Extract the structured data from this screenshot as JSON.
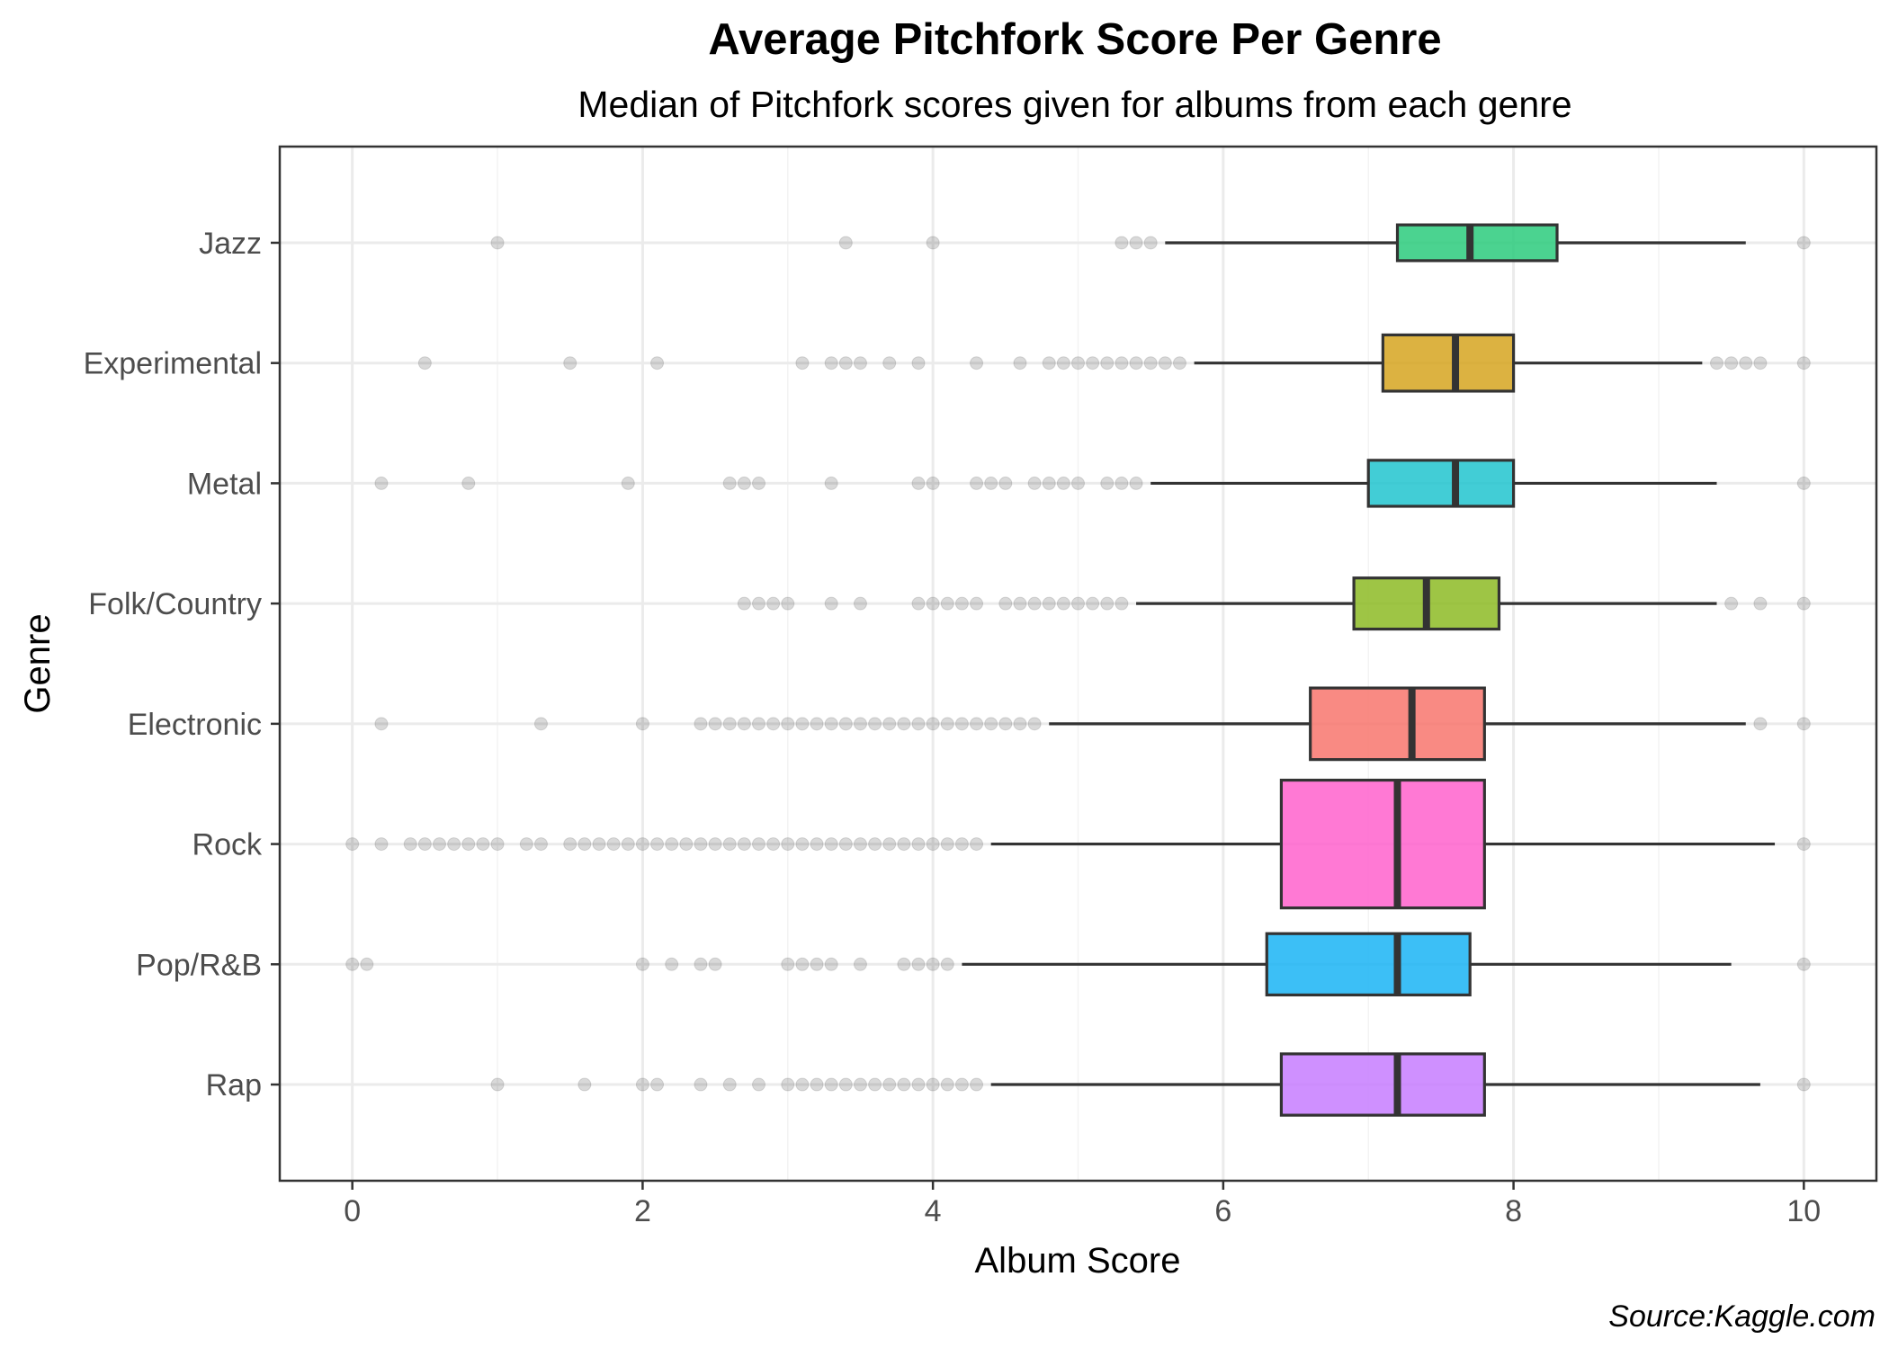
{
  "chart_data": {
    "type": "boxplot",
    "title": "Average Pitchfork Score Per Genre",
    "subtitle": "Median of Pitchfork scores given for albums from each genre",
    "xlabel": "Album Score",
    "ylabel": "Genre",
    "caption": "Source:Kaggle.com",
    "xlim": [
      -0.5,
      10.5
    ],
    "x_ticks": [
      0,
      2,
      4,
      6,
      8,
      10
    ],
    "x_tick_labels": [
      "0",
      "2",
      "4",
      "6",
      "8",
      "10"
    ],
    "grid": true,
    "legend": "none",
    "categories": [
      "Jazz",
      "Experimental",
      "Metal",
      "Folk/Country",
      "Electronic",
      "Rock",
      "Pop/R&B",
      "Rap"
    ],
    "series": [
      {
        "genre": "Jazz",
        "color": "#2BCB7D",
        "width": 0.35,
        "min": 5.6,
        "q1": 7.2,
        "median": 7.7,
        "q3": 8.3,
        "max": 9.6,
        "outliers": [
          1.0,
          3.4,
          4.0,
          5.3,
          5.4,
          5.5,
          10.0
        ]
      },
      {
        "genre": "Experimental",
        "color": "#D6A520",
        "width": 0.55,
        "min": 5.8,
        "q1": 7.1,
        "median": 7.6,
        "q3": 8.0,
        "max": 9.3,
        "outliers": [
          0.5,
          1.5,
          2.1,
          3.1,
          3.3,
          3.4,
          3.5,
          3.7,
          3.9,
          4.3,
          4.6,
          4.8,
          4.9,
          5.0,
          5.1,
          5.2,
          5.3,
          5.4,
          5.5,
          5.6,
          5.7,
          9.4,
          9.5,
          9.6,
          9.7,
          10.0
        ]
      },
      {
        "genre": "Metal",
        "color": "#21C4CF",
        "width": 0.45,
        "min": 5.5,
        "q1": 7.0,
        "median": 7.6,
        "q3": 8.0,
        "max": 9.4,
        "outliers": [
          0.2,
          0.8,
          1.9,
          2.6,
          2.7,
          2.8,
          3.3,
          3.9,
          4.0,
          4.3,
          4.4,
          4.5,
          4.7,
          4.8,
          4.9,
          5.0,
          5.2,
          5.3,
          5.4,
          10.0
        ]
      },
      {
        "genre": "Folk/Country",
        "color": "#8DBB25",
        "width": 0.5,
        "min": 5.4,
        "q1": 6.9,
        "median": 7.4,
        "q3": 7.9,
        "max": 9.4,
        "outliers": [
          2.7,
          2.8,
          2.9,
          3.0,
          3.3,
          3.5,
          3.9,
          4.0,
          4.1,
          4.2,
          4.3,
          4.5,
          4.6,
          4.7,
          4.8,
          4.9,
          5.0,
          5.1,
          5.2,
          5.3,
          9.5,
          9.7,
          10.0
        ]
      },
      {
        "genre": "Electronic",
        "color": "#F8766D",
        "width": 0.7,
        "min": 4.8,
        "q1": 6.6,
        "median": 7.3,
        "q3": 7.8,
        "max": 9.6,
        "outliers": [
          0.2,
          1.3,
          2.0,
          2.4,
          2.5,
          2.6,
          2.7,
          2.8,
          2.9,
          3.0,
          3.1,
          3.2,
          3.3,
          3.4,
          3.5,
          3.6,
          3.7,
          3.8,
          3.9,
          4.0,
          4.1,
          4.2,
          4.3,
          4.4,
          4.5,
          4.6,
          4.7,
          9.7,
          10.0
        ]
      },
      {
        "genre": "Rock",
        "color": "#FF61CC",
        "width": 1.25,
        "min": 4.4,
        "q1": 6.4,
        "median": 7.2,
        "q3": 7.8,
        "max": 9.8,
        "outliers": [
          0.0,
          0.2,
          0.4,
          0.5,
          0.6,
          0.7,
          0.8,
          0.9,
          1.0,
          1.2,
          1.3,
          1.5,
          1.6,
          1.7,
          1.8,
          1.9,
          2.0,
          2.1,
          2.2,
          2.3,
          2.4,
          2.5,
          2.6,
          2.7,
          2.8,
          2.9,
          3.0,
          3.1,
          3.2,
          3.3,
          3.4,
          3.5,
          3.6,
          3.7,
          3.8,
          3.9,
          4.0,
          4.1,
          4.2,
          4.3,
          10.0
        ]
      },
      {
        "genre": "Pop/R&B",
        "color": "#1AB4F5",
        "width": 0.6,
        "min": 4.2,
        "q1": 6.3,
        "median": 7.2,
        "q3": 7.7,
        "max": 9.5,
        "outliers": [
          0.0,
          0.1,
          2.0,
          2.2,
          2.4,
          2.5,
          3.0,
          3.1,
          3.2,
          3.3,
          3.5,
          3.8,
          3.9,
          4.0,
          4.1,
          10.0
        ]
      },
      {
        "genre": "Rap",
        "color": "#C77CFF",
        "width": 0.6,
        "min": 4.4,
        "q1": 6.4,
        "median": 7.2,
        "q3": 7.8,
        "max": 9.7,
        "outliers": [
          1.0,
          1.6,
          2.0,
          2.1,
          2.4,
          2.6,
          2.8,
          3.0,
          3.1,
          3.2,
          3.3,
          3.4,
          3.5,
          3.6,
          3.7,
          3.8,
          3.9,
          4.0,
          4.1,
          4.2,
          4.3,
          10.0
        ]
      }
    ]
  }
}
